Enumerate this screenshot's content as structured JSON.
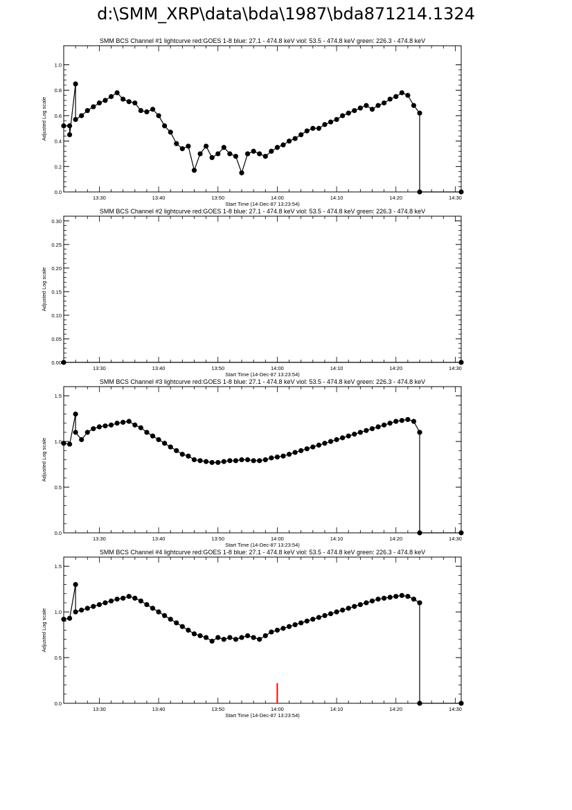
{
  "page": {
    "title": "d:\\SMM_XRP\\data\\bda\\1987\\bda871214.1324"
  },
  "colors": {
    "axes": "#000000",
    "data": "#000000",
    "goes": "#ff0000"
  },
  "chart_data": [
    {
      "type": "scatter",
      "title": "SMM BCS Channel #1 lightcurve  red:GOES 1-8  blue: 27.1 - 474.8 keV  viol: 53.5 - 474.8 keV  green: 226.3 - 474.8 keV",
      "xlabel": "Start Time (14-Dec-87 13:23:54)",
      "ylabel": "Adjusted Log scale",
      "x_ticks": [
        "13:30",
        "13:40",
        "13:50",
        "14:00",
        "14:10",
        "14:20",
        "14:30"
      ],
      "y_ticks": [
        "0.0",
        "0.2",
        "0.4",
        "0.6",
        "0.8",
        "1.0"
      ],
      "xlim": [
        "13:24",
        "14:31"
      ],
      "ylim": [
        0,
        1.15
      ],
      "series": [
        {
          "marker": "filled-circle",
          "line": true,
          "points": [
            [
              "13:24",
              0.52
            ],
            [
              "13:25",
              0.52
            ],
            [
              "13:25",
              0.45
            ],
            [
              "13:26",
              0.85
            ],
            [
              "13:26",
              0.57
            ],
            [
              "13:27",
              0.6
            ],
            [
              "13:28",
              0.64
            ],
            [
              "13:29",
              0.67
            ],
            [
              "13:30",
              0.7
            ],
            [
              "13:31",
              0.72
            ],
            [
              "13:32",
              0.75
            ],
            [
              "13:33",
              0.78
            ],
            [
              "13:34",
              0.73
            ],
            [
              "13:35",
              0.71
            ],
            [
              "13:36",
              0.7
            ],
            [
              "13:37",
              0.64
            ],
            [
              "13:38",
              0.63
            ],
            [
              "13:39",
              0.65
            ],
            [
              "13:40",
              0.6
            ],
            [
              "13:41",
              0.52
            ],
            [
              "13:42",
              0.47
            ],
            [
              "13:43",
              0.38
            ],
            [
              "13:44",
              0.34
            ],
            [
              "13:45",
              0.36
            ],
            [
              "13:46",
              0.17
            ],
            [
              "13:47",
              0.3
            ],
            [
              "13:48",
              0.36
            ],
            [
              "13:49",
              0.27
            ],
            [
              "13:50",
              0.3
            ],
            [
              "13:51",
              0.35
            ],
            [
              "13:52",
              0.3
            ],
            [
              "13:53",
              0.28
            ],
            [
              "13:54",
              0.15
            ],
            [
              "13:55",
              0.3
            ],
            [
              "13:56",
              0.32
            ],
            [
              "13:57",
              0.3
            ],
            [
              "13:58",
              0.28
            ],
            [
              "13:59",
              0.32
            ],
            [
              "14:00",
              0.35
            ],
            [
              "14:01",
              0.37
            ],
            [
              "14:02",
              0.4
            ],
            [
              "14:03",
              0.42
            ],
            [
              "14:04",
              0.45
            ],
            [
              "14:05",
              0.48
            ],
            [
              "14:06",
              0.5
            ],
            [
              "14:07",
              0.5
            ],
            [
              "14:08",
              0.53
            ],
            [
              "14:09",
              0.55
            ],
            [
              "14:10",
              0.57
            ],
            [
              "14:11",
              0.6
            ],
            [
              "14:12",
              0.62
            ],
            [
              "14:13",
              0.64
            ],
            [
              "14:14",
              0.66
            ],
            [
              "14:15",
              0.68
            ],
            [
              "14:16",
              0.65
            ],
            [
              "14:17",
              0.68
            ],
            [
              "14:18",
              0.7
            ],
            [
              "14:19",
              0.73
            ],
            [
              "14:20",
              0.75
            ],
            [
              "14:21",
              0.78
            ],
            [
              "14:22",
              0.76
            ],
            [
              "14:23",
              0.68
            ],
            [
              "14:24",
              0.62
            ],
            [
              "14:24",
              0.0
            ],
            [
              "14:31",
              0.0
            ]
          ]
        }
      ]
    },
    {
      "type": "scatter",
      "title": "SMM BCS Channel #2 lightcurve  red:GOES 1-8  blue: 27.1 - 474.8 keV  viol: 53.5 - 474.8 keV  green: 226.3 - 474.8 keV",
      "xlabel": "Start Time (14-Dec-87 13:23:54)",
      "ylabel": "Adjusted Log scale",
      "x_ticks": [
        "13:30",
        "13:40",
        "13:50",
        "14:00",
        "14:10",
        "14:20",
        "14:30"
      ],
      "y_ticks": [
        "0.00",
        "0.05",
        "0.10",
        "0.15",
        "0.20",
        "0.25",
        "0.30"
      ],
      "xlim": [
        "13:24",
        "14:31"
      ],
      "ylim": [
        0,
        0.31
      ],
      "series": [
        {
          "marker": "filled-circle",
          "line": true,
          "points": [
            [
              "13:24",
              0.0
            ],
            [
              "14:31",
              0.0
            ]
          ]
        }
      ]
    },
    {
      "type": "scatter",
      "title": "SMM BCS Channel #3 lightcurve  red:GOES 1-8  blue: 27.1 - 474.8 keV  viol: 53.5 - 474.8 keV  green: 226.3 - 474.8 keV",
      "xlabel": "Start Time (14-Dec-87 13:23:54)",
      "ylabel": "Adjusted Log scale",
      "x_ticks": [
        "13:30",
        "13:40",
        "13:50",
        "14:00",
        "14:10",
        "14:20",
        "14:30"
      ],
      "y_ticks": [
        "0.0",
        "0.5",
        "1.0",
        "1.5"
      ],
      "xlim": [
        "13:24",
        "14:31"
      ],
      "ylim": [
        0,
        1.6
      ],
      "series": [
        {
          "marker": "filled-circle",
          "line": true,
          "points": [
            [
              "13:24",
              0.98
            ],
            [
              "13:25",
              0.97
            ],
            [
              "13:26",
              1.3
            ],
            [
              "13:26",
              1.1
            ],
            [
              "13:27",
              1.02
            ],
            [
              "13:28",
              1.1
            ],
            [
              "13:29",
              1.14
            ],
            [
              "13:30",
              1.16
            ],
            [
              "13:31",
              1.17
            ],
            [
              "13:32",
              1.18
            ],
            [
              "13:33",
              1.2
            ],
            [
              "13:34",
              1.21
            ],
            [
              "13:35",
              1.22
            ],
            [
              "13:36",
              1.18
            ],
            [
              "13:37",
              1.15
            ],
            [
              "13:38",
              1.1
            ],
            [
              "13:39",
              1.06
            ],
            [
              "13:40",
              1.02
            ],
            [
              "13:41",
              0.98
            ],
            [
              "13:42",
              0.94
            ],
            [
              "13:43",
              0.9
            ],
            [
              "13:44",
              0.86
            ],
            [
              "13:45",
              0.84
            ],
            [
              "13:46",
              0.8
            ],
            [
              "13:47",
              0.79
            ],
            [
              "13:48",
              0.78
            ],
            [
              "13:49",
              0.77
            ],
            [
              "13:50",
              0.77
            ],
            [
              "13:51",
              0.78
            ],
            [
              "13:52",
              0.79
            ],
            [
              "13:53",
              0.79
            ],
            [
              "13:54",
              0.8
            ],
            [
              "13:55",
              0.8
            ],
            [
              "13:56",
              0.79
            ],
            [
              "13:57",
              0.79
            ],
            [
              "13:58",
              0.8
            ],
            [
              "13:59",
              0.82
            ],
            [
              "14:00",
              0.83
            ],
            [
              "14:01",
              0.84
            ],
            [
              "14:02",
              0.86
            ],
            [
              "14:03",
              0.88
            ],
            [
              "14:04",
              0.9
            ],
            [
              "14:05",
              0.92
            ],
            [
              "14:06",
              0.94
            ],
            [
              "14:07",
              0.96
            ],
            [
              "14:08",
              0.98
            ],
            [
              "14:09",
              1.0
            ],
            [
              "14:10",
              1.02
            ],
            [
              "14:11",
              1.04
            ],
            [
              "14:12",
              1.06
            ],
            [
              "14:13",
              1.08
            ],
            [
              "14:14",
              1.1
            ],
            [
              "14:15",
              1.12
            ],
            [
              "14:16",
              1.14
            ],
            [
              "14:17",
              1.16
            ],
            [
              "14:18",
              1.18
            ],
            [
              "14:19",
              1.2
            ],
            [
              "14:20",
              1.22
            ],
            [
              "14:21",
              1.23
            ],
            [
              "14:22",
              1.24
            ],
            [
              "14:23",
              1.22
            ],
            [
              "14:24",
              1.1
            ],
            [
              "14:24",
              0.0
            ],
            [
              "14:31",
              0.0
            ]
          ]
        }
      ]
    },
    {
      "type": "scatter",
      "title": "SMM BCS Channel #4 lightcurve  red:GOES 1-8  blue: 27.1 - 474.8 keV  viol: 53.5 - 474.8 keV  green: 226.3 - 474.8 keV",
      "xlabel": "Start Time (14-Dec-87 13:23:54)",
      "ylabel": "Adjusted Log scale",
      "x_ticks": [
        "13:30",
        "13:40",
        "13:50",
        "14:00",
        "14:10",
        "14:20",
        "14:30"
      ],
      "y_ticks": [
        "0.0",
        "0.5",
        "1.0",
        "1.5"
      ],
      "xlim": [
        "13:24",
        "14:31"
      ],
      "ylim": [
        0,
        1.6
      ],
      "series": [
        {
          "marker": "filled-circle",
          "line": true,
          "points": [
            [
              "13:24",
              0.92
            ],
            [
              "13:25",
              0.93
            ],
            [
              "13:26",
              1.3
            ],
            [
              "13:26",
              1.0
            ],
            [
              "13:27",
              1.02
            ],
            [
              "13:28",
              1.04
            ],
            [
              "13:29",
              1.06
            ],
            [
              "13:30",
              1.08
            ],
            [
              "13:31",
              1.1
            ],
            [
              "13:32",
              1.12
            ],
            [
              "13:33",
              1.14
            ],
            [
              "13:34",
              1.15
            ],
            [
              "13:35",
              1.17
            ],
            [
              "13:36",
              1.15
            ],
            [
              "13:37",
              1.12
            ],
            [
              "13:38",
              1.08
            ],
            [
              "13:39",
              1.04
            ],
            [
              "13:40",
              1.0
            ],
            [
              "13:41",
              0.96
            ],
            [
              "13:42",
              0.92
            ],
            [
              "13:43",
              0.88
            ],
            [
              "13:44",
              0.84
            ],
            [
              "13:45",
              0.8
            ],
            [
              "13:46",
              0.76
            ],
            [
              "13:47",
              0.74
            ],
            [
              "13:48",
              0.72
            ],
            [
              "13:49",
              0.68
            ],
            [
              "13:50",
              0.72
            ],
            [
              "13:51",
              0.7
            ],
            [
              "13:52",
              0.72
            ],
            [
              "13:53",
              0.7
            ],
            [
              "13:54",
              0.72
            ],
            [
              "13:55",
              0.74
            ],
            [
              "13:56",
              0.72
            ],
            [
              "13:57",
              0.7
            ],
            [
              "13:58",
              0.74
            ],
            [
              "13:59",
              0.78
            ],
            [
              "14:00",
              0.8
            ],
            [
              "14:01",
              0.82
            ],
            [
              "14:02",
              0.84
            ],
            [
              "14:03",
              0.86
            ],
            [
              "14:04",
              0.88
            ],
            [
              "14:05",
              0.9
            ],
            [
              "14:06",
              0.92
            ],
            [
              "14:07",
              0.94
            ],
            [
              "14:08",
              0.96
            ],
            [
              "14:09",
              0.98
            ],
            [
              "14:10",
              1.0
            ],
            [
              "14:11",
              1.02
            ],
            [
              "14:12",
              1.04
            ],
            [
              "14:13",
              1.06
            ],
            [
              "14:14",
              1.08
            ],
            [
              "14:15",
              1.1
            ],
            [
              "14:16",
              1.12
            ],
            [
              "14:17",
              1.14
            ],
            [
              "14:18",
              1.15
            ],
            [
              "14:19",
              1.16
            ],
            [
              "14:20",
              1.17
            ],
            [
              "14:21",
              1.18
            ],
            [
              "14:22",
              1.17
            ],
            [
              "14:23",
              1.14
            ],
            [
              "14:24",
              1.1
            ],
            [
              "14:24",
              0.0
            ],
            [
              "14:31",
              0.0
            ]
          ]
        },
        {
          "color": "red",
          "marker": "none",
          "line": true,
          "points": [
            [
              "14:00",
              0.0
            ],
            [
              "14:00",
              0.22
            ],
            [
              "14:00",
              0.22
            ],
            [
              "14:00",
              0.0
            ]
          ]
        }
      ]
    }
  ]
}
